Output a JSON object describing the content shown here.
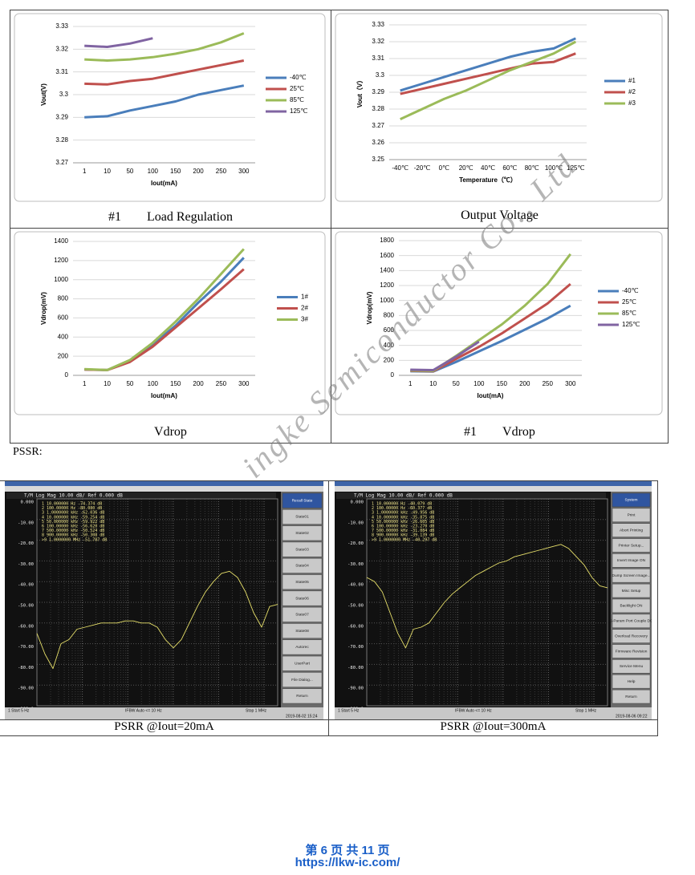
{
  "chart_data": [
    {
      "type": "line",
      "xlabel": "Iout(mA)",
      "ylabel": "Vout(V)",
      "categories": [
        "1",
        "10",
        "50",
        "100",
        "150",
        "200",
        "250",
        "300"
      ],
      "ylim": [
        3.27,
        3.33
      ],
      "yticks": [
        3.27,
        3.28,
        3.29,
        3.3,
        3.31,
        3.32,
        3.33
      ],
      "grid": true,
      "legend": "right",
      "series": [
        {
          "name": "-40℃",
          "color": "#4a7ebb",
          "values": [
            3.29,
            3.2905,
            3.293,
            3.295,
            3.297,
            3.3,
            3.302,
            3.304
          ]
        },
        {
          "name": "25℃",
          "color": "#c0504d",
          "values": [
            3.3048,
            3.3045,
            3.306,
            3.307,
            3.309,
            3.311,
            3.313,
            3.315
          ]
        },
        {
          "name": "85℃",
          "color": "#9bbb59",
          "values": [
            3.3155,
            3.315,
            3.3155,
            3.3165,
            3.318,
            3.32,
            3.323,
            3.327
          ]
        },
        {
          "name": "125℃",
          "color": "#8064a2",
          "values": [
            3.3215,
            3.321,
            3.3225,
            3.3248,
            null,
            null,
            null,
            null
          ]
        }
      ]
    },
    {
      "type": "line",
      "xlabel": "Temperature（℃）",
      "ylabel": "Vout（V）",
      "categories": [
        "-40℃",
        "-20℃",
        "0℃",
        "20℃",
        "40℃",
        "60℃",
        "80℃",
        "100℃",
        "125℃"
      ],
      "ylim": [
        3.25,
        3.33
      ],
      "yticks": [
        3.25,
        3.26,
        3.27,
        3.28,
        3.29,
        3.3,
        3.31,
        3.32,
        3.33
      ],
      "grid": true,
      "legend": "right",
      "series": [
        {
          "name": "#1",
          "color": "#4a7ebb",
          "values": [
            3.291,
            3.295,
            3.299,
            3.303,
            3.307,
            3.311,
            3.314,
            3.316,
            3.322
          ]
        },
        {
          "name": "#2",
          "color": "#c0504d",
          "values": [
            3.289,
            3.292,
            3.295,
            3.298,
            3.301,
            3.304,
            3.307,
            3.308,
            3.313
          ]
        },
        {
          "name": "#3",
          "color": "#9bbb59",
          "values": [
            3.274,
            3.28,
            3.286,
            3.291,
            3.297,
            3.303,
            3.308,
            3.313,
            3.32
          ]
        }
      ]
    },
    {
      "type": "line",
      "xlabel": "Iout(mA)",
      "ylabel": "Vdrop(mV)",
      "categories": [
        "1",
        "10",
        "50",
        "100",
        "150",
        "200",
        "250",
        "300"
      ],
      "ylim": [
        0,
        1400
      ],
      "yticks": [
        0,
        200,
        400,
        600,
        800,
        1000,
        1200,
        1400
      ],
      "grid": true,
      "legend": "right",
      "series": [
        {
          "name": "1#",
          "color": "#4a7ebb",
          "values": [
            60,
            55,
            150,
            320,
            520,
            760,
            980,
            1230
          ]
        },
        {
          "name": "2#",
          "color": "#c0504d",
          "values": [
            60,
            55,
            140,
            300,
            500,
            700,
            900,
            1110
          ]
        },
        {
          "name": "3#",
          "color": "#9bbb59",
          "values": [
            65,
            55,
            160,
            340,
            560,
            800,
            1060,
            1320
          ]
        }
      ]
    },
    {
      "type": "line",
      "xlabel": "Iout(mA)",
      "ylabel": "Vdrop(mV)",
      "categories": [
        "1",
        "10",
        "50",
        "100",
        "150",
        "200",
        "250",
        "300"
      ],
      "ylim": [
        0,
        1800
      ],
      "yticks": [
        0,
        200,
        400,
        600,
        800,
        1000,
        1200,
        1400,
        1600,
        1800
      ],
      "grid": true,
      "legend": "right",
      "series": [
        {
          "name": "-40℃",
          "color": "#4a7ebb",
          "values": [
            55,
            50,
            180,
            320,
            460,
            610,
            760,
            930
          ]
        },
        {
          "name": "25℃",
          "color": "#c0504d",
          "values": [
            60,
            55,
            220,
            380,
            560,
            760,
            960,
            1220
          ]
        },
        {
          "name": "85℃",
          "color": "#9bbb59",
          "values": [
            65,
            60,
            260,
            470,
            680,
            930,
            1220,
            1620
          ]
        },
        {
          "name": "125℃",
          "color": "#8064a2",
          "values": [
            75,
            70,
            250,
            450,
            null,
            null,
            null,
            null
          ]
        }
      ]
    },
    {
      "type": "analyzer",
      "title": "T/M Log Mag 10.00 dB/ Ref 0.000 dB",
      "ylim": [
        -100,
        0
      ],
      "yticks": [
        {
          "value": 0,
          "label": "0.000"
        },
        {
          "value": -10,
          "label": "-10.00"
        },
        {
          "value": -20,
          "label": "-20.00"
        },
        {
          "value": -30,
          "label": "-30.00"
        },
        {
          "value": -40,
          "label": "-40.00"
        },
        {
          "value": -50,
          "label": "-50.00"
        },
        {
          "value": -60,
          "label": "-60.00"
        },
        {
          "value": -70,
          "label": "-70.00"
        },
        {
          "value": -80,
          "label": "-80.00"
        },
        {
          "value": -90,
          "label": "-90.00"
        },
        {
          "value": -100,
          "label": "-100.0"
        }
      ],
      "markers": [
        "1  10.000000 Hz  -74.374 dB",
        "2  100.00000 Hz  -80.080 dB",
        "3  1.0000000 kHz  -62.036 dB",
        "4  10.000000 kHz  -59.254 dB",
        "5  50.000000 kHz  -59.922 dB",
        "6  100.00000 kHz  -56.620 dB",
        "7  500.00000 kHz  -50.524 dB",
        "8  900.00000 kHz  -50.308 dB",
        ">9  1.0000000 MHz  -51.787 dB"
      ],
      "series": [
        {
          "color": "#e6df6a",
          "values": [
            -65,
            -75,
            -82,
            -70,
            -68,
            -63,
            -62,
            -61,
            -60,
            -60,
            -60,
            -59,
            -59,
            -60,
            -60,
            -62,
            -68,
            -72,
            -68,
            -60,
            -52,
            -45,
            -40,
            -36,
            -35,
            -38,
            -45,
            -55,
            -62,
            -52,
            -51
          ]
        }
      ],
      "menu": [
        "Recall State",
        "State01",
        "State02",
        "State03",
        "State04",
        "State05",
        "State06",
        "State07",
        "State08",
        "Autorec",
        "UserPart",
        "File Dialog...",
        "Return"
      ],
      "status": [
        "1  Start 5 Hz",
        "IFBW Auto <= 10 Hz",
        "Stop 1 MHz",
        "2019-08-02 15:24"
      ]
    },
    {
      "type": "analyzer",
      "title": "T/M Log Mag 10.00 dB/ Ref 0.000 dB",
      "ylim": [
        -100,
        0
      ],
      "yticks": [
        {
          "value": 0,
          "label": "0.000"
        },
        {
          "value": -10,
          "label": "-10.00"
        },
        {
          "value": -20,
          "label": "-20.00"
        },
        {
          "value": -30,
          "label": "-30.00"
        },
        {
          "value": -40,
          "label": "-40.00"
        },
        {
          "value": -50,
          "label": "-50.00"
        },
        {
          "value": -60,
          "label": "-60.00"
        },
        {
          "value": -70,
          "label": "-70.00"
        },
        {
          "value": -80,
          "label": "-80.00"
        },
        {
          "value": -90,
          "label": "-90.00"
        },
        {
          "value": -100,
          "label": "-100.0"
        }
      ],
      "markers": [
        "1  10.000000 Hz  -40.079 dB",
        "2  100.00000 Hz  -60.377 dB",
        "3  1.0000000 kHz  -49.956 dB",
        "4  10.000000 kHz  -35.875 dB",
        "5  50.000000 kHz  -26.605 dB",
        "6  100.00000 kHz  -23.270 dB",
        "7  500.00000 kHz  -31.084 dB",
        "8  900.00000 kHz  -39.139 dB",
        ">9  1.0000000 MHz  -40.297 dB"
      ],
      "series": [
        {
          "color": "#e6df6a",
          "values": [
            -38,
            -40,
            -45,
            -55,
            -65,
            -72,
            -63,
            -62,
            -60,
            -55,
            -50,
            -46,
            -43,
            -40,
            -37,
            -35,
            -33,
            -31,
            -30,
            -28,
            -27,
            -26,
            -25,
            -24,
            -23,
            -22,
            -24,
            -28,
            -32,
            -38,
            -42,
            -43
          ]
        }
      ],
      "menu": [
        "System",
        "Print",
        "Abort Printing",
        "Printer Setup...",
        "Invert Image ON",
        "Dump Screen Image...",
        "Misc Setup",
        "Backlight ON",
        "S-Param Port Couple DC",
        "Overload Recovery",
        "Firmware Revision",
        "Service Menu",
        "Help",
        "Return"
      ],
      "status": [
        "1  Start 5 Hz",
        "IFBW Auto <= 10 Hz",
        "Stop 1 MHz",
        "2019-08-06 09:22"
      ]
    }
  ],
  "captions": [
    [
      "#1",
      "Load Regulation"
    ],
    [
      "Output Voltage"
    ],
    [
      "Vdrop"
    ],
    [
      "#1",
      "Vdrop"
    ]
  ],
  "pssr_label": "PSSR:",
  "psrr_captions": [
    "PSRR @Iout=20mA",
    "PSRR @Iout=300mA"
  ],
  "watermark": "ingke Semiconductor Co., Ltd",
  "footer": {
    "page": "第 6 页 共 11 页",
    "url": "https://lkw-ic.com/"
  }
}
